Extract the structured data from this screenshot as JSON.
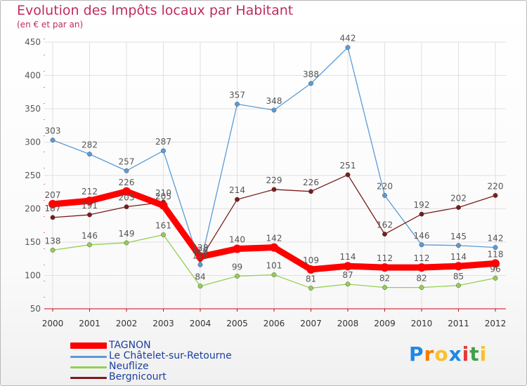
{
  "header": {
    "title": "Evolution des Impôts locaux par Habitant",
    "subtitle": "(en € et par an)"
  },
  "colors": {
    "title": "#c02a60",
    "axis": "#d0021b",
    "grid": "#e0e0e0",
    "label": "#555555"
  },
  "chart_data": {
    "type": "line",
    "title": "Evolution des Impôts locaux par Habitant",
    "subtitle": "(en € et par an)",
    "xlabel": "",
    "ylabel": "",
    "ylim": [
      50,
      450
    ],
    "yticks": [
      50,
      100,
      150,
      200,
      250,
      300,
      350,
      400,
      450
    ],
    "grid": true,
    "legend_position": "bottom-left",
    "categories": [
      "2000",
      "2001",
      "2002",
      "2003",
      "2004",
      "2005",
      "2006",
      "2007",
      "2008",
      "2009",
      "2010",
      "2011",
      "2012"
    ],
    "series": [
      {
        "name": "TAGNON",
        "color": "#ff0000",
        "values": [
          207,
          212,
          226,
          205,
          128,
          140,
          142,
          109,
          114,
          112,
          112,
          114,
          118
        ]
      },
      {
        "name": "Le Châtelet-sur-Retourne",
        "color": "#5b9bd5",
        "values": [
          303,
          282,
          257,
          287,
          116,
          357,
          348,
          388,
          442,
          220,
          146,
          145,
          142
        ]
      },
      {
        "name": "Neuflize",
        "color": "#92d050",
        "values": [
          138,
          146,
          149,
          161,
          84,
          99,
          101,
          81,
          87,
          82,
          82,
          85,
          96
        ]
      },
      {
        "name": "Bergnicourt",
        "color": "#7b1c1c",
        "values": [
          187,
          191,
          203,
          210,
          124,
          214,
          229,
          226,
          251,
          162,
          192,
          202,
          220
        ]
      }
    ]
  },
  "legend": {
    "items": [
      {
        "label": "TAGNON",
        "color": "#ff0000"
      },
      {
        "label": "Le Châtelet-sur-Retourne",
        "color": "#5b9bd5"
      },
      {
        "label": "Neuflize",
        "color": "#92d050"
      },
      {
        "label": "Bergnicourt",
        "color": "#7b1c1c"
      }
    ]
  },
  "brand": {
    "letters": [
      "P",
      "r",
      "o",
      "x",
      "i",
      "t",
      "i"
    ],
    "colors": [
      "#1e88e5",
      "#f57c00",
      "#fbc02d",
      "#1e88e5",
      "#e53935",
      "#43a047",
      "#fbc02d"
    ]
  }
}
